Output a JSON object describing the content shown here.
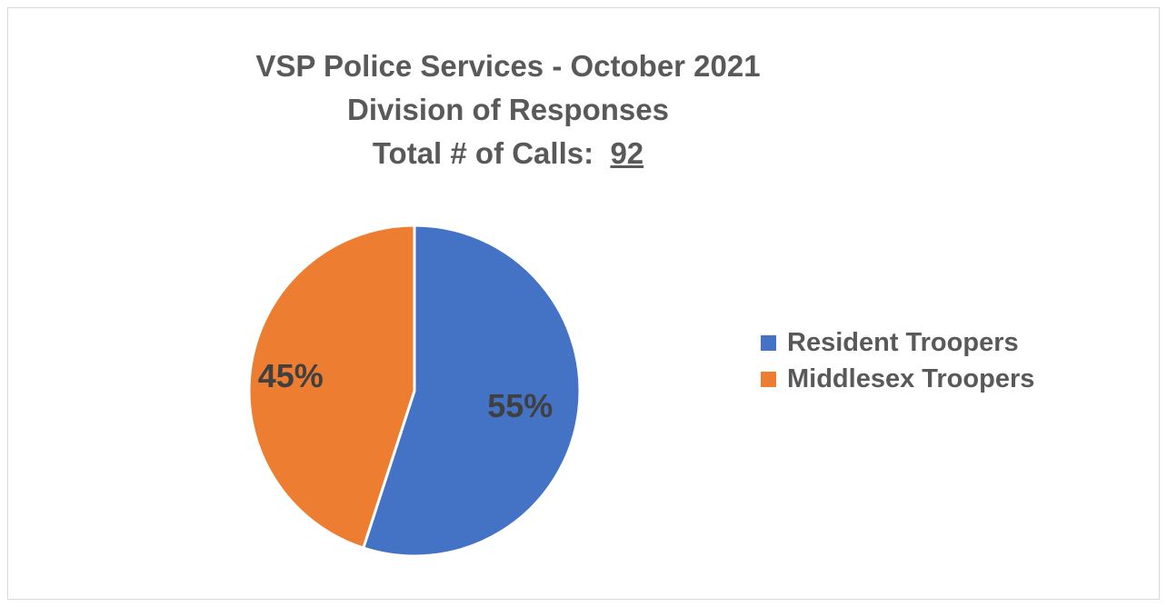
{
  "chart_data": {
    "type": "pie",
    "title_lines": [
      "VSP Police Services - October 2021",
      "Division of Responses"
    ],
    "total_label": "Total # of Calls:",
    "total_value": "92",
    "categories": [
      "Resident Troopers",
      "Middlesex Troopers"
    ],
    "values": [
      55,
      45
    ],
    "data_labels": [
      "55%",
      "45%"
    ],
    "colors": [
      "#4472C4",
      "#ED7D31"
    ],
    "legend_position": "right"
  }
}
